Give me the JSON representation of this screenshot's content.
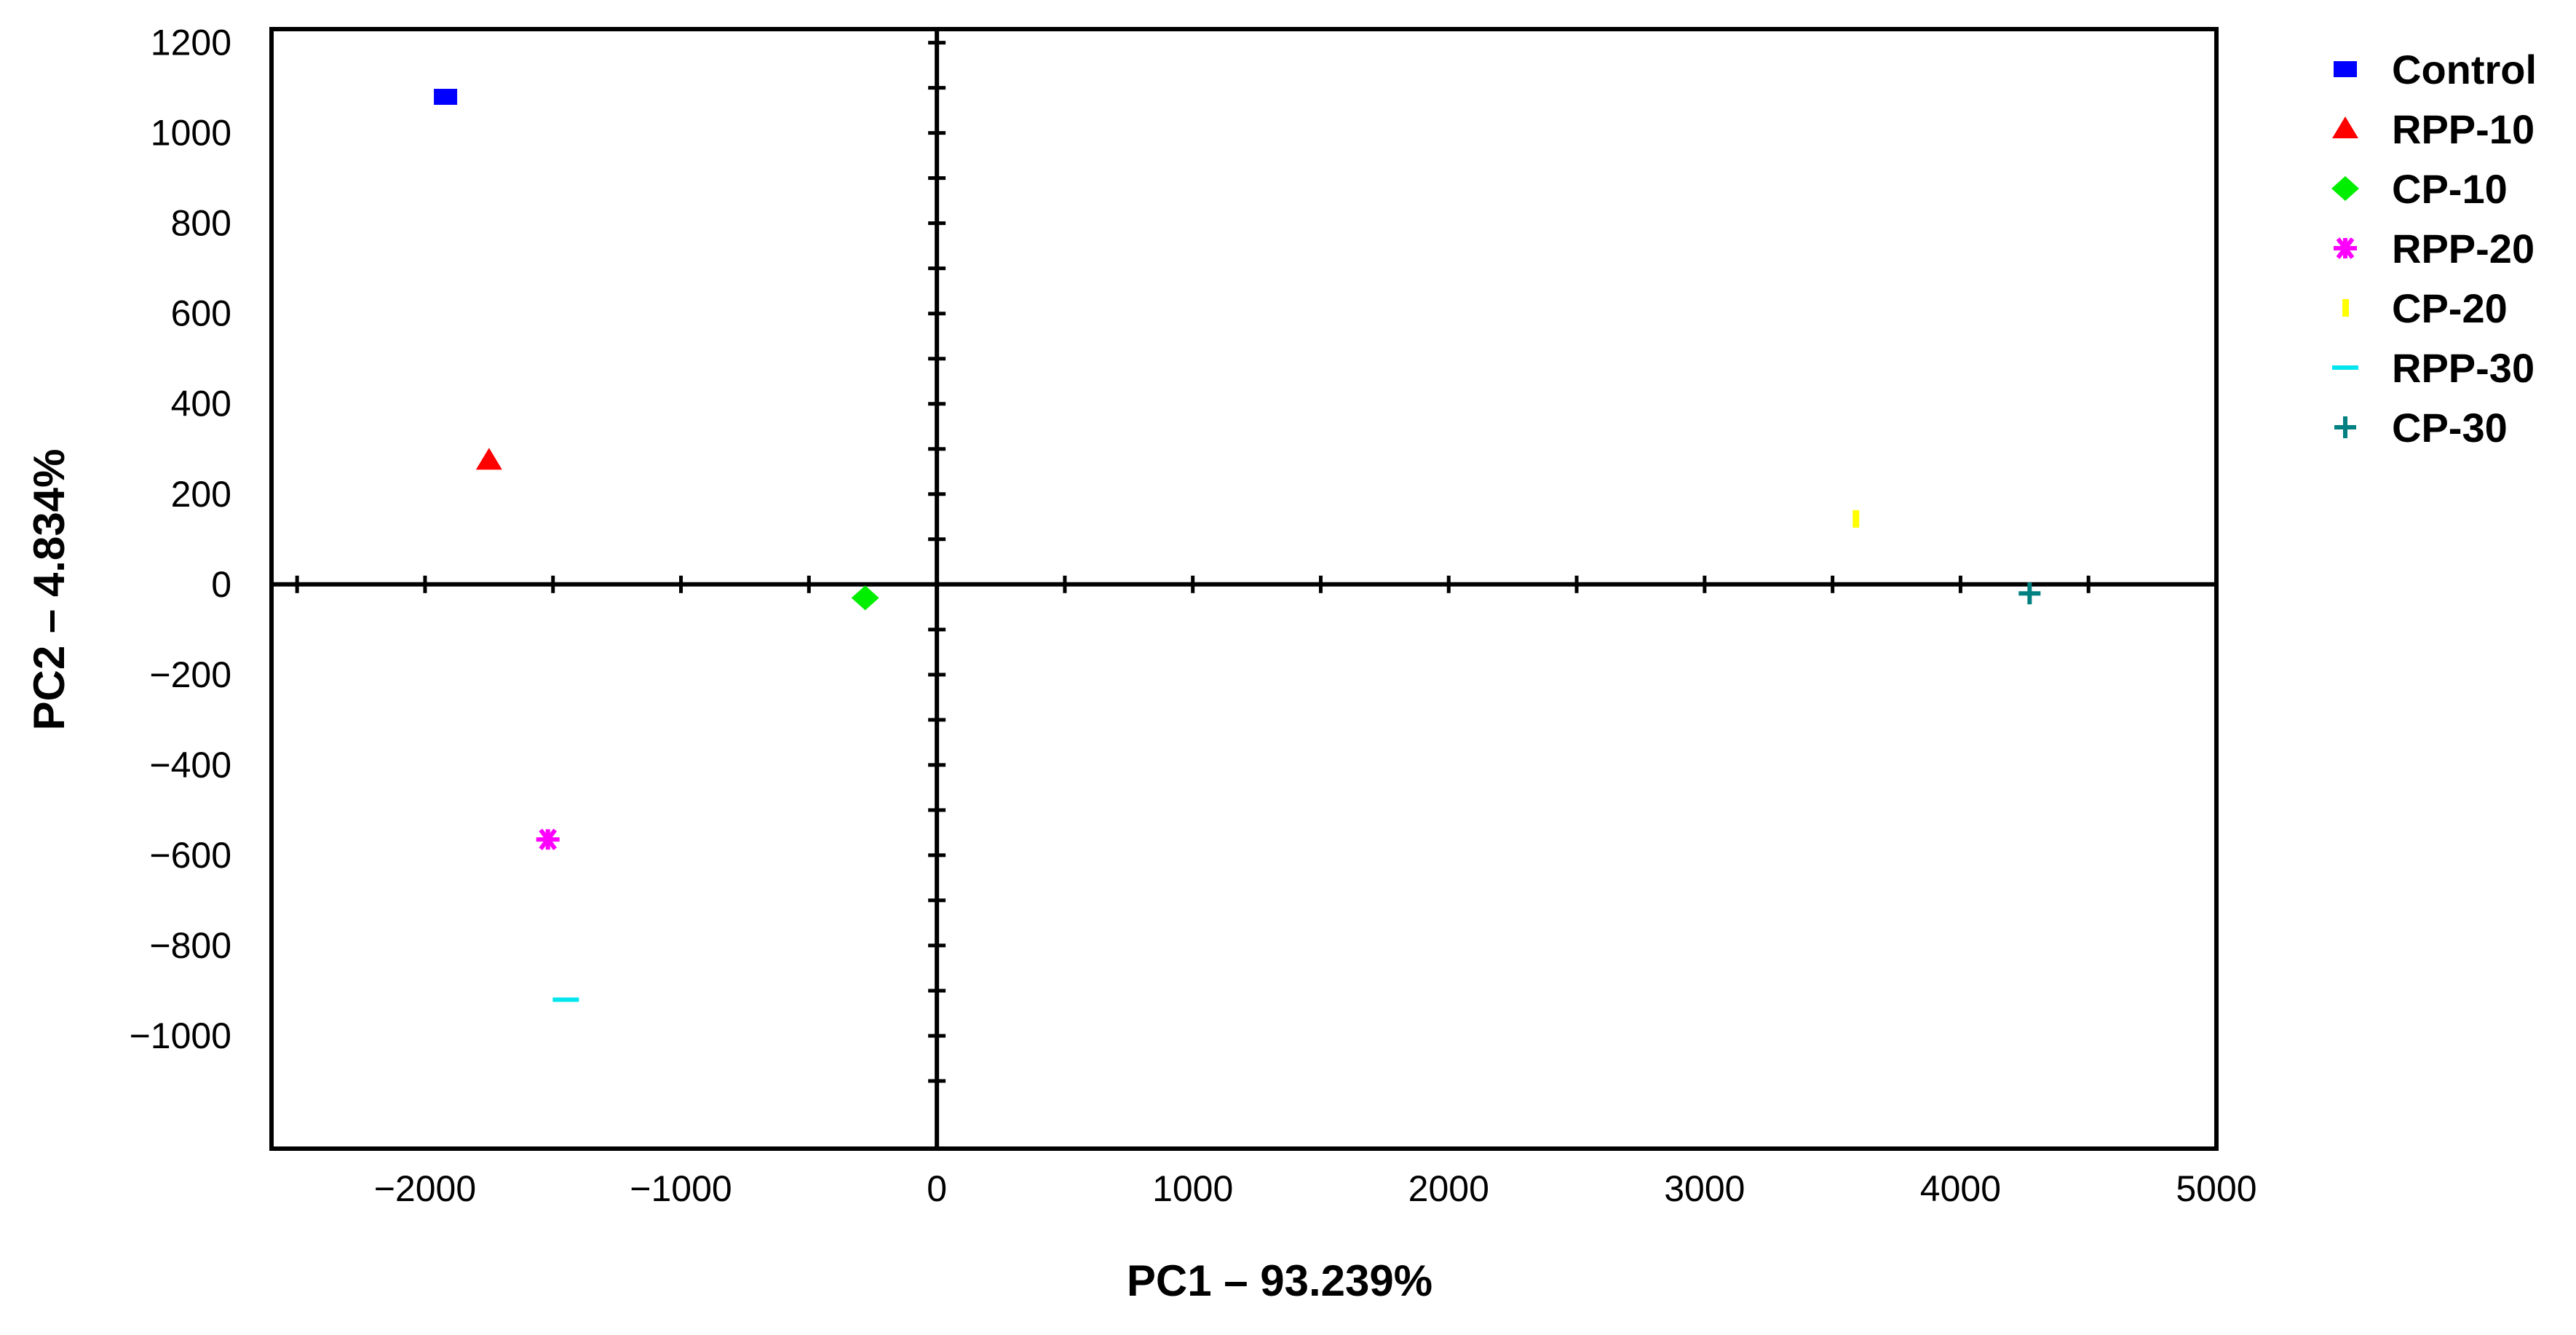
{
  "chart_data": {
    "type": "scatter",
    "xlabel": "PC1 – 93.239%",
    "ylabel": "PC2 – 4.834%",
    "xlim": [
      -2600,
      5000
    ],
    "ylim": [
      -1250,
      1230
    ],
    "x_ticks": [
      "−2000",
      "−1000",
      "0",
      "1000",
      "2000",
      "3000",
      "4000",
      "5000"
    ],
    "x_tick_values": [
      -2000,
      -1000,
      0,
      1000,
      2000,
      3000,
      4000,
      5000
    ],
    "y_ticks": [
      "1200",
      "1000",
      "800",
      "600",
      "400",
      "200",
      "0",
      "−200",
      "−400",
      "−600",
      "−800",
      "−1000"
    ],
    "y_tick_values": [
      1200,
      1000,
      800,
      600,
      400,
      200,
      0,
      -200,
      -400,
      -600,
      -800,
      -1000
    ],
    "grid": false,
    "legend_position": "right",
    "series": [
      {
        "name": "Control",
        "marker": "square",
        "color": "#0000ff",
        "points": [
          {
            "x": -1920,
            "y": 1080
          }
        ]
      },
      {
        "name": "RPP-10",
        "marker": "triangle",
        "color": "#ff0000",
        "points": [
          {
            "x": -1750,
            "y": 275
          }
        ]
      },
      {
        "name": "CP-10",
        "marker": "diamond",
        "color": "#00ee00",
        "points": [
          {
            "x": -280,
            "y": -30
          }
        ]
      },
      {
        "name": "RPP-20",
        "marker": "asterisk",
        "color": "#ff00ff",
        "points": [
          {
            "x": -1520,
            "y": -565
          }
        ]
      },
      {
        "name": "CP-20",
        "marker": "vbar",
        "color": "#ffff00",
        "points": [
          {
            "x": 3590,
            "y": 145
          }
        ]
      },
      {
        "name": "RPP-30",
        "marker": "hbar",
        "color": "#00e5ee",
        "points": [
          {
            "x": -1450,
            "y": -920
          }
        ]
      },
      {
        "name": "CP-30",
        "marker": "plus",
        "color": "#008080",
        "points": [
          {
            "x": 4270,
            "y": -20
          }
        ]
      }
    ]
  }
}
